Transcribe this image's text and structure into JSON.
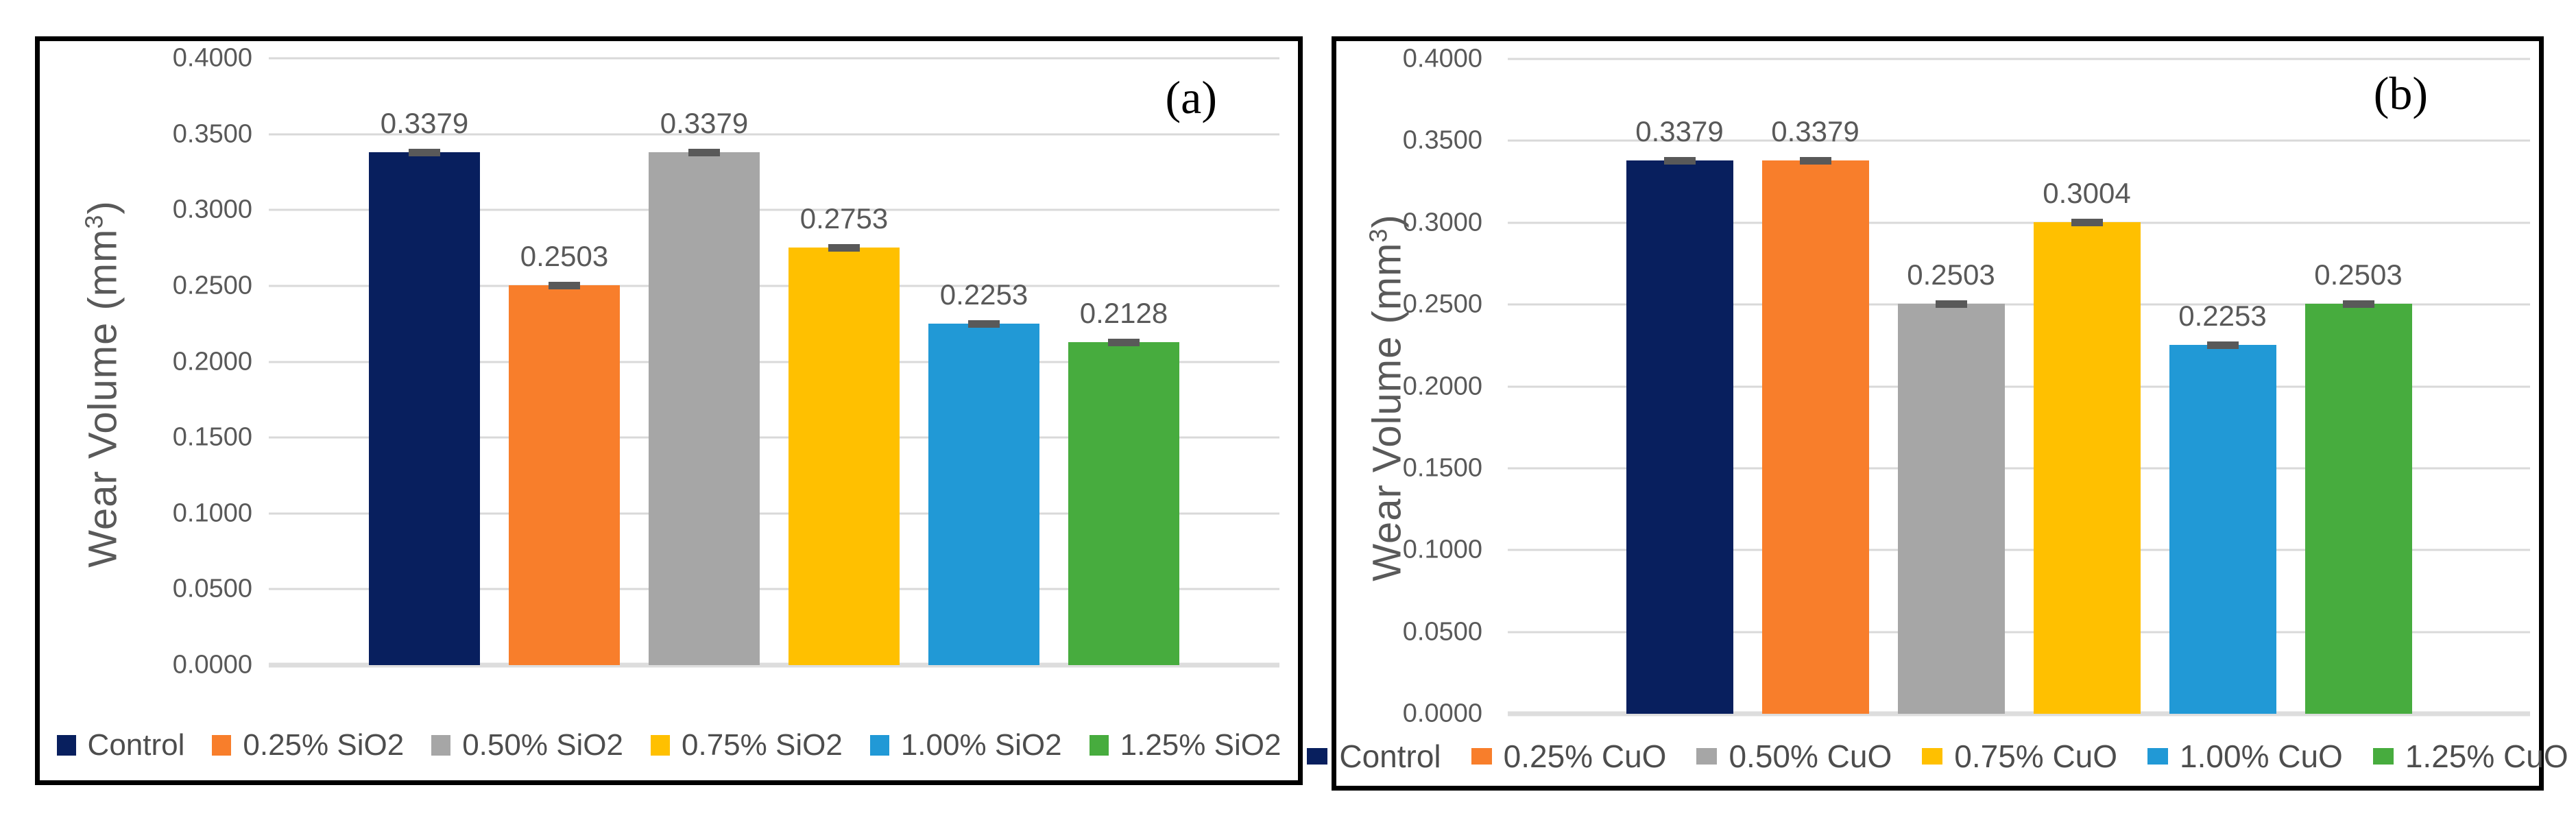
{
  "figure": {
    "description_left_panel_label": "(a)",
    "description_right_panel_label": "(b)"
  },
  "chart_data": [
    {
      "type": "bar",
      "panel_label": "(a)",
      "categories": [
        "Control",
        "0.25% SiO2",
        "0.50% SiO2",
        "0.75% SiO2",
        "1.00% SiO2",
        "1.25% SiO2"
      ],
      "values": [
        0.3379,
        0.2503,
        0.3379,
        0.2753,
        0.2253,
        0.2128
      ],
      "value_labels": [
        "0.3379",
        "0.2503",
        "0.3379",
        "0.2753",
        "0.2253",
        "0.2128"
      ],
      "bar_colors": [
        "#081F5E",
        "#F87E2B",
        "#A6A6A6",
        "#FFC000",
        "#2199D6",
        "#47AC3E"
      ],
      "ylabel": "Wear Volume (mm3)",
      "ylabel_prefix": "Wear Volume (mm",
      "ylabel_sup": "3",
      "ylabel_suffix": ")",
      "yticks": [
        "0.4000",
        "0.3500",
        "0.3000",
        "0.2500",
        "0.2000",
        "0.1500",
        "0.1000",
        "0.0500",
        "0.0000"
      ],
      "ylim": [
        0,
        0.4
      ],
      "grid": true,
      "legend_position": "bottom",
      "error_caps": true,
      "text_color": "#595959",
      "gridline_color": "#D9D9D9"
    },
    {
      "type": "bar",
      "panel_label": "(b)",
      "categories": [
        "Control",
        "0.25% CuO",
        "0.50% CuO",
        "0.75% CuO",
        "1.00% CuO",
        "1.25% CuO"
      ],
      "values": [
        0.3379,
        0.3379,
        0.2503,
        0.3004,
        0.2253,
        0.2503
      ],
      "value_labels": [
        "0.3379",
        "0.3379",
        "0.2503",
        "0.3004",
        "0.2253",
        "0.2503"
      ],
      "bar_colors": [
        "#081F5E",
        "#F87E2B",
        "#A6A6A6",
        "#FFC000",
        "#2199D6",
        "#47AC3E"
      ],
      "ylabel": "Wear Volume (mm3)",
      "ylabel_prefix": "Wear Volume (mm",
      "ylabel_sup": "3",
      "ylabel_suffix": ")",
      "yticks": [
        "0.4000",
        "0.3500",
        "0.3000",
        "0.2500",
        "0.2000",
        "0.1500",
        "0.1000",
        "0.0500",
        "0.0000"
      ],
      "ylim": [
        0,
        0.4
      ],
      "grid": true,
      "legend_position": "bottom",
      "error_caps": true,
      "text_color": "#595959",
      "gridline_color": "#D9D9D9"
    }
  ]
}
